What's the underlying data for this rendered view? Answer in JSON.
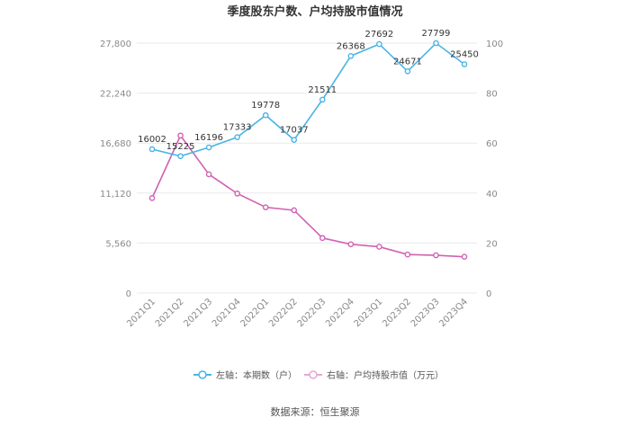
{
  "chart_data": {
    "type": "line",
    "title": "季度股东户数、户均持股市值情况",
    "categories": [
      "2021Q1",
      "2021Q2",
      "2021Q3",
      "2021Q4",
      "2022Q1",
      "2022Q2",
      "2022Q3",
      "2022Q4",
      "2023Q1",
      "2023Q2",
      "2023Q3",
      "2023Q4"
    ],
    "left_axis": {
      "ylim": [
        0,
        27800
      ],
      "ticks": [
        "0",
        "5,560",
        "11,120",
        "16,680",
        "22,240",
        "27,800"
      ],
      "tick_values": [
        0,
        5560,
        11120,
        16680,
        22240,
        27800
      ]
    },
    "right_axis": {
      "ylim": [
        0,
        100
      ],
      "ticks": [
        "0",
        "20",
        "40",
        "60",
        "80",
        "100"
      ],
      "tick_values": [
        0,
        20,
        40,
        60,
        80,
        100
      ]
    },
    "series": [
      {
        "name": "左轴：本期数（户）",
        "axis": "left",
        "color": "#4ab4e6",
        "values": [
          16002,
          15225,
          16196,
          17333,
          19778,
          17037,
          21511,
          26368,
          27692,
          24671,
          27799,
          25450
        ],
        "labels": [
          "16002",
          "15225",
          "16196",
          "17333",
          "19778",
          "17037",
          "21511",
          "26368",
          "27692",
          "24671",
          "27799",
          "25450"
        ]
      },
      {
        "name": "右轴：户均持股市值（万元）",
        "axis": "right",
        "color": "#d161b2",
        "values": [
          38.0,
          63.0,
          47.5,
          39.8,
          34.3,
          33.1,
          22.0,
          19.5,
          18.5,
          15.4,
          15.1,
          14.5
        ]
      }
    ],
    "grid": true,
    "legend": "bottom-center",
    "source": "数据来源：恒生聚源"
  }
}
